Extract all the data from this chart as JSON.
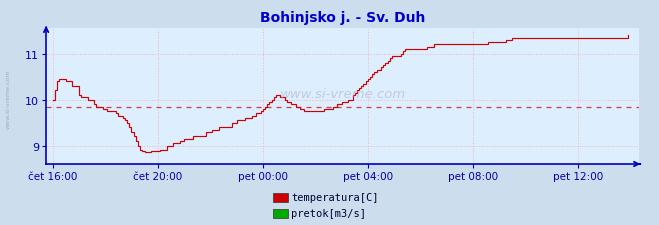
{
  "title": "Bohinjsko j. - Sv. Duh",
  "title_color": "#0000cc",
  "title_fontsize": 10,
  "plot_bg_color": "#ddeeff",
  "outer_bg_color": "#ccdded",
  "grid_color": "#ffaaaa",
  "line_color": "#cc0000",
  "avg_line_color": "#cc0000",
  "avg_value": 9.85,
  "axis_color": "#0000bb",
  "tick_label_color": "#0000aa",
  "yticks": [
    9,
    10,
    11
  ],
  "ylim": [
    8.6,
    11.55
  ],
  "xtick_labels": [
    "čet 16:00",
    "čet 20:00",
    "pet 00:00",
    "pet 04:00",
    "pet 08:00",
    "pet 12:00"
  ],
  "xtick_positions": [
    0,
    48,
    96,
    144,
    192,
    240
  ],
  "xlim": [
    -3,
    268
  ],
  "watermark": "www.si-vreme.com",
  "legend_items": [
    {
      "label": "temperatura[C]",
      "color": "#cc0000"
    },
    {
      "label": "pretok[m3/s]",
      "color": "#00aa00"
    }
  ],
  "temperature_data": [
    10.0,
    10.2,
    10.4,
    10.45,
    10.45,
    10.45,
    10.4,
    10.4,
    10.4,
    10.3,
    10.3,
    10.3,
    10.1,
    10.05,
    10.05,
    10.05,
    10.0,
    10.0,
    10.0,
    9.9,
    9.85,
    9.85,
    9.85,
    9.8,
    9.8,
    9.75,
    9.75,
    9.75,
    9.75,
    9.7,
    9.65,
    9.65,
    9.6,
    9.55,
    9.5,
    9.4,
    9.3,
    9.2,
    9.1,
    9.0,
    8.9,
    8.88,
    8.85,
    8.85,
    8.85,
    8.88,
    8.88,
    8.88,
    8.88,
    8.9,
    8.9,
    8.9,
    9.0,
    9.0,
    9.0,
    9.05,
    9.05,
    9.05,
    9.1,
    9.1,
    9.15,
    9.15,
    9.15,
    9.15,
    9.2,
    9.2,
    9.2,
    9.2,
    9.2,
    9.2,
    9.3,
    9.3,
    9.3,
    9.35,
    9.35,
    9.35,
    9.4,
    9.4,
    9.4,
    9.4,
    9.4,
    9.4,
    9.5,
    9.5,
    9.55,
    9.55,
    9.55,
    9.55,
    9.6,
    9.6,
    9.6,
    9.65,
    9.65,
    9.7,
    9.7,
    9.75,
    9.8,
    9.85,
    9.9,
    9.95,
    10.0,
    10.05,
    10.1,
    10.1,
    10.05,
    10.05,
    10.0,
    9.95,
    9.95,
    9.9,
    9.9,
    9.85,
    9.85,
    9.8,
    9.8,
    9.75,
    9.75,
    9.75,
    9.75,
    9.75,
    9.75,
    9.75,
    9.75,
    9.75,
    9.8,
    9.8,
    9.8,
    9.8,
    9.85,
    9.85,
    9.9,
    9.9,
    9.95,
    9.95,
    9.95,
    10.0,
    10.0,
    10.1,
    10.15,
    10.2,
    10.25,
    10.3,
    10.35,
    10.4,
    10.45,
    10.5,
    10.55,
    10.6,
    10.65,
    10.65,
    10.7,
    10.75,
    10.8,
    10.85,
    10.9,
    10.95,
    10.95,
    10.95,
    10.95,
    11.0,
    11.05,
    11.1,
    11.1,
    11.1,
    11.1,
    11.1,
    11.1,
    11.1,
    11.1,
    11.1,
    11.1,
    11.15,
    11.15,
    11.15,
    11.2,
    11.2,
    11.2,
    11.2,
    11.2,
    11.2,
    11.2,
    11.2,
    11.2,
    11.2,
    11.2,
    11.2,
    11.2,
    11.2,
    11.2,
    11.2,
    11.2,
    11.2,
    11.2,
    11.2,
    11.2,
    11.2,
    11.2,
    11.2,
    11.2,
    11.25,
    11.25,
    11.25,
    11.25,
    11.25,
    11.25,
    11.25,
    11.25,
    11.3,
    11.3,
    11.3,
    11.35,
    11.35,
    11.35,
    11.35,
    11.35,
    11.35,
    11.35,
    11.35,
    11.35,
    11.35,
    11.35,
    11.35,
    11.35,
    11.35,
    11.35,
    11.35,
    11.35,
    11.35,
    11.35,
    11.35,
    11.35,
    11.35,
    11.35,
    11.35,
    11.35,
    11.35,
    11.35,
    11.35,
    11.35,
    11.35,
    11.35,
    11.35,
    11.35,
    11.35,
    11.35,
    11.35,
    11.35,
    11.35,
    11.35,
    11.35,
    11.35,
    11.35,
    11.35,
    11.35,
    11.35,
    11.35,
    11.35,
    11.35,
    11.35,
    11.35,
    11.35,
    11.35,
    11.35,
    11.4
  ]
}
